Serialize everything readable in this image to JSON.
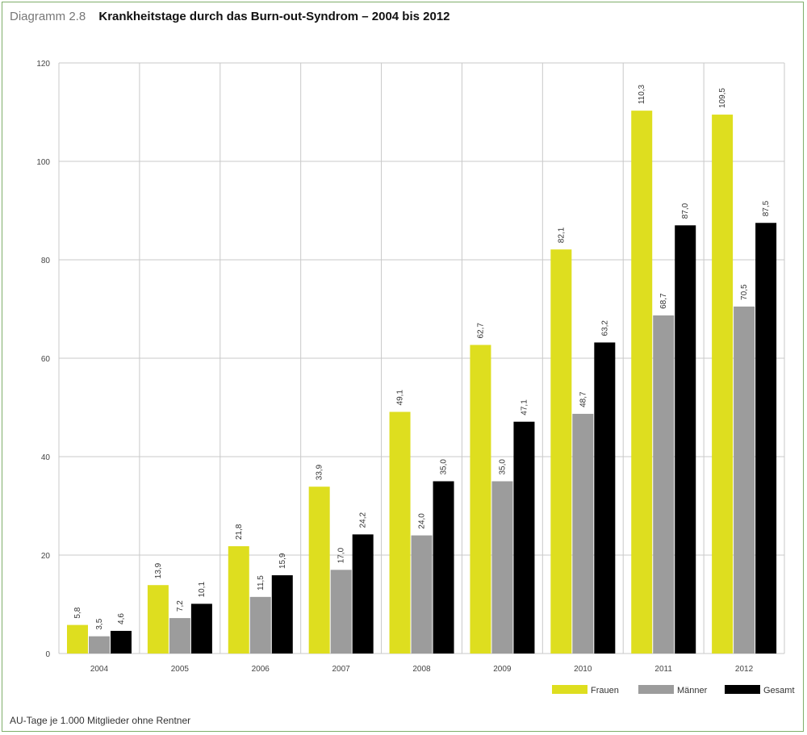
{
  "header": {
    "label": "Diagramm 2.8",
    "title": "Krankheitstage durch das Burn-out-Syndrom – 2004 bis 2012"
  },
  "footnote": "AU-Tage je 1.000 Mitglieder ohne Rentner",
  "colors": {
    "Frauen": "#dede1f",
    "Männer": "#9c9c9c",
    "Gesamt": "#000000",
    "grid": "#c9c9c9"
  },
  "chart_data": {
    "type": "bar",
    "categories": [
      "2004",
      "2005",
      "2006",
      "2007",
      "2008",
      "2009",
      "2010",
      "2011",
      "2012"
    ],
    "series": [
      {
        "name": "Frauen",
        "values": [
          5.8,
          13.9,
          21.8,
          33.9,
          49.1,
          62.7,
          82.1,
          110.3,
          109.5
        ],
        "labels": [
          "5,8",
          "13,9",
          "21,8",
          "33,9",
          "49,1",
          "62,7",
          "82,1",
          "110,3",
          "109,5"
        ]
      },
      {
        "name": "Männer",
        "values": [
          3.5,
          7.2,
          11.5,
          17.0,
          24.0,
          35.0,
          48.7,
          68.7,
          70.5
        ],
        "labels": [
          "3,5",
          "7,2",
          "11,5",
          "17,0",
          "24,0",
          "35,0",
          "48,7",
          "68,7",
          "70,5"
        ]
      },
      {
        "name": "Gesamt",
        "values": [
          4.6,
          10.1,
          15.9,
          24.2,
          35.0,
          47.1,
          63.2,
          87.0,
          87.5
        ],
        "labels": [
          "4,6",
          "10,1",
          "15,9",
          "24,2",
          "35,0",
          "47,1",
          "63,2",
          "87,0",
          "87,5"
        ]
      }
    ],
    "yticks": [
      "0",
      "20",
      "40",
      "60",
      "80",
      "100",
      "120"
    ],
    "ylim": [
      0,
      120
    ],
    "grid": true,
    "legend": "bottom-right"
  }
}
